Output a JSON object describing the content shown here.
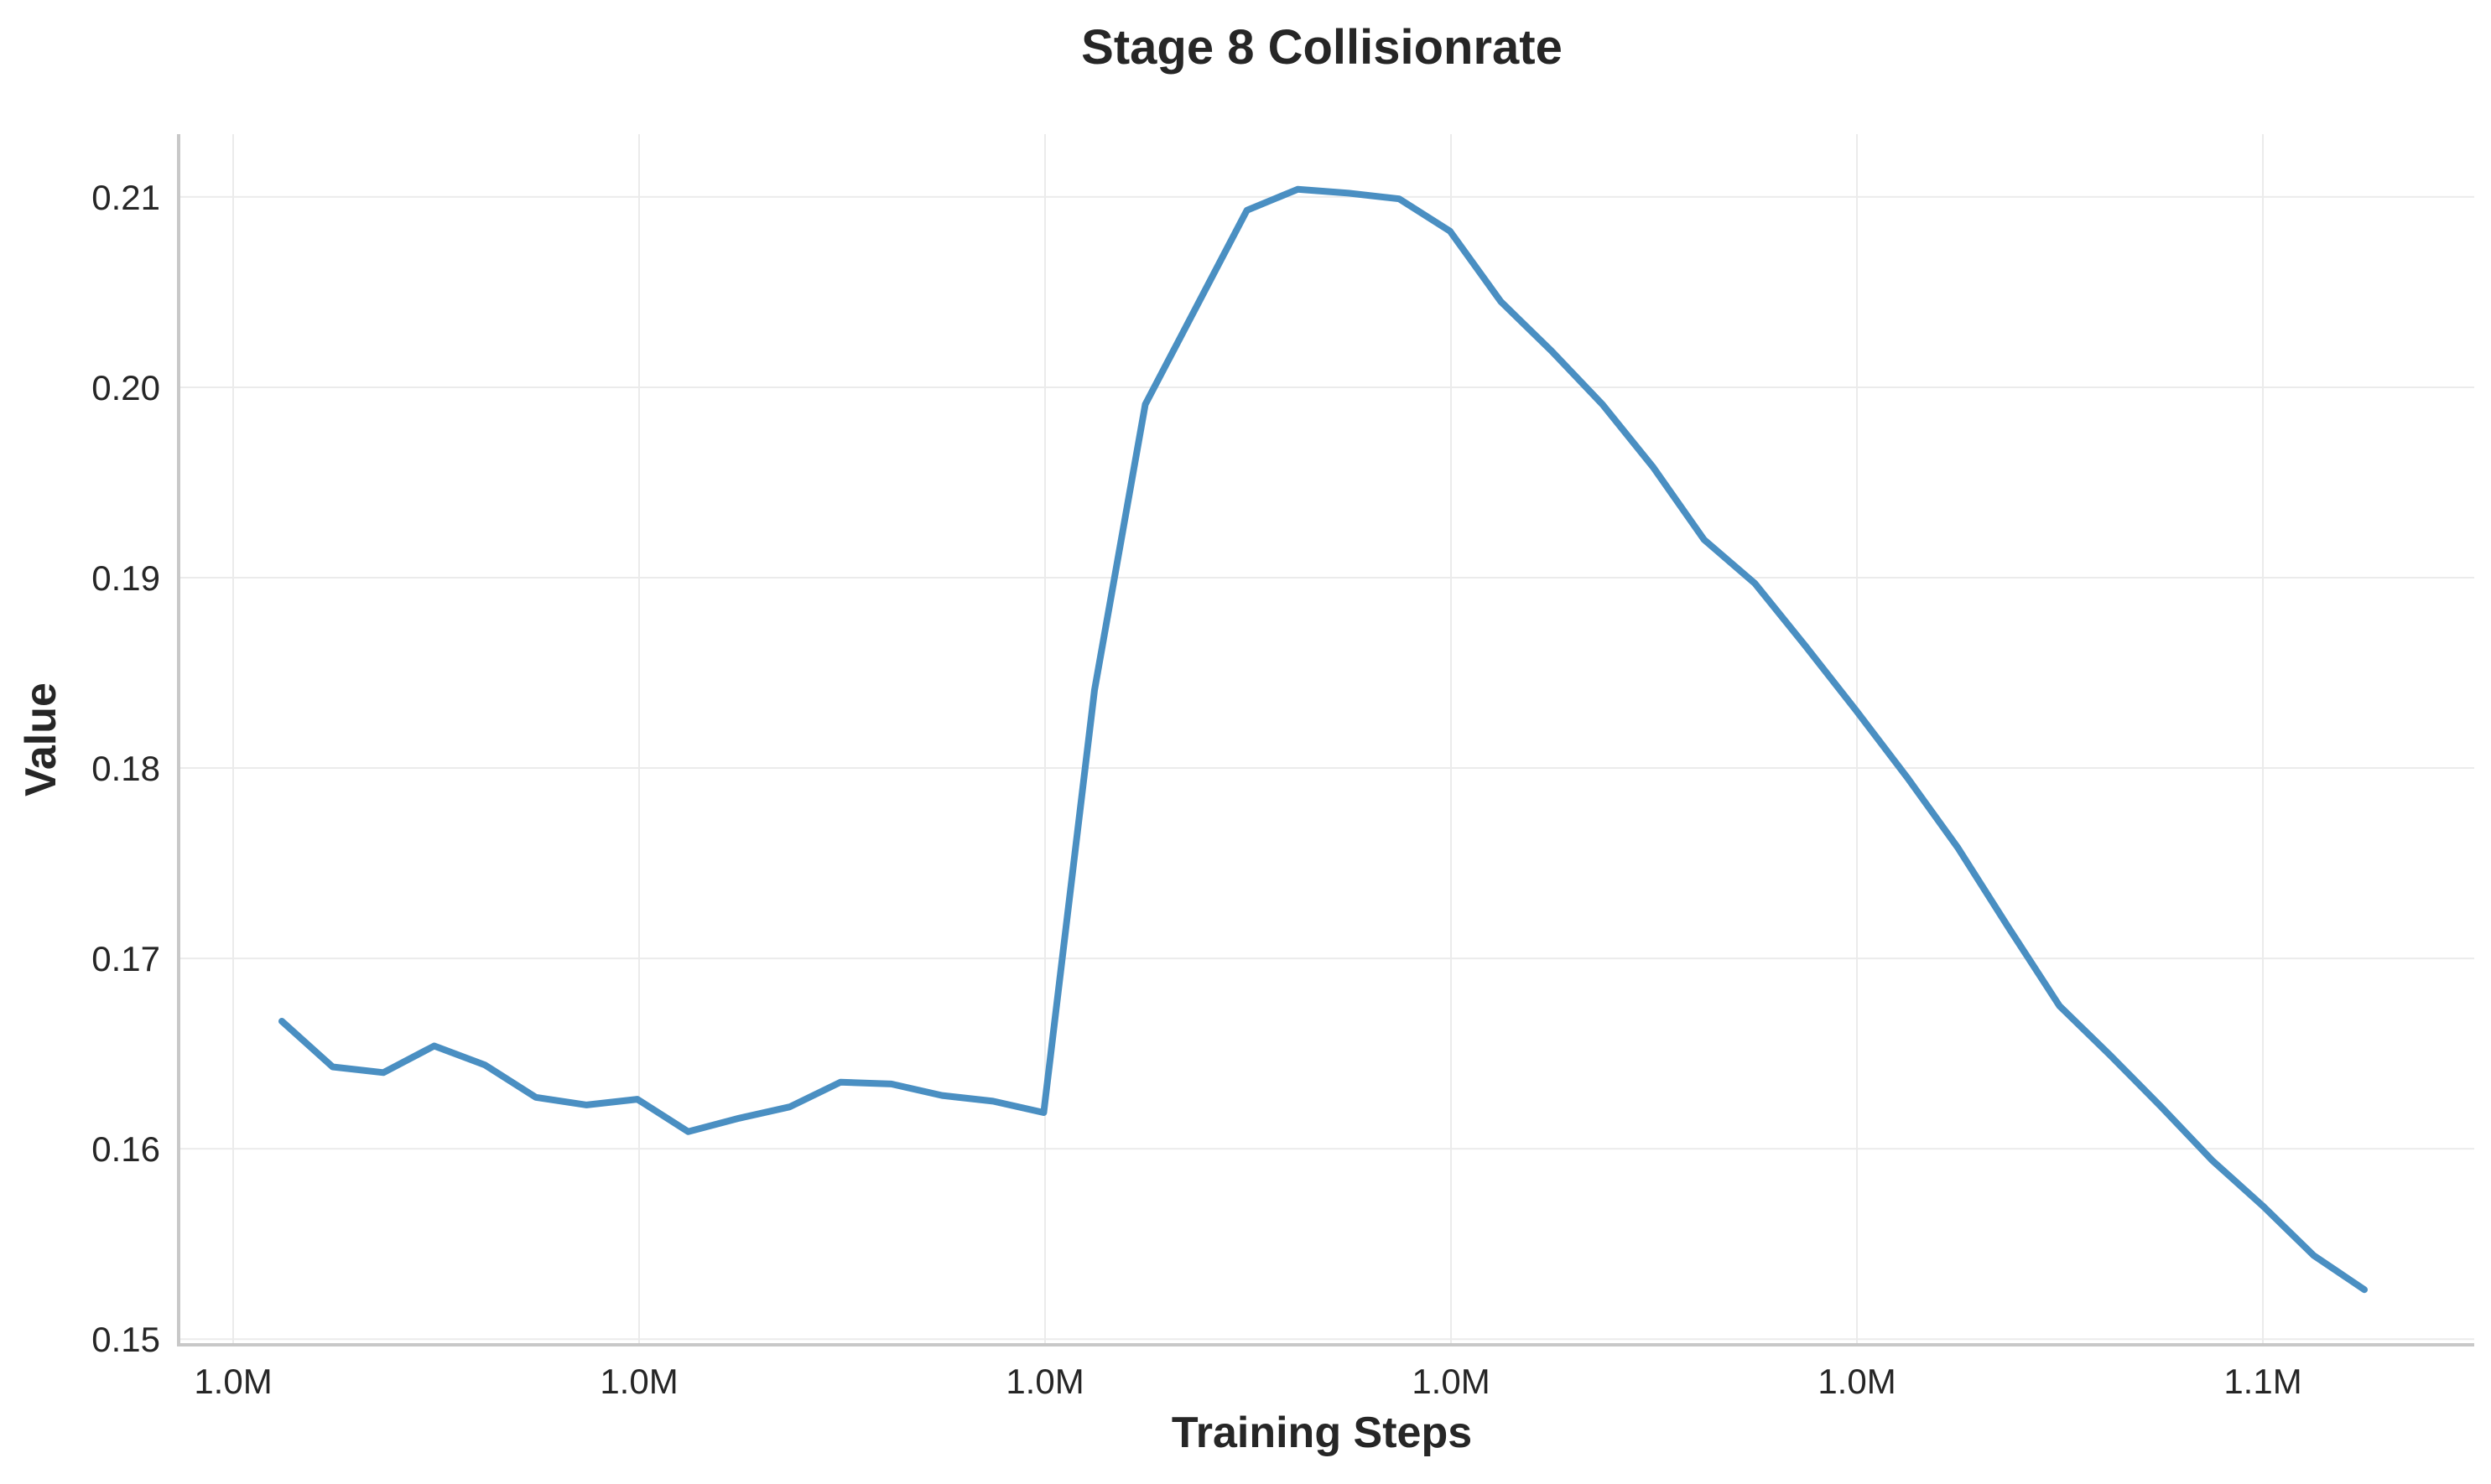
{
  "chart_data": {
    "type": "line",
    "title": "Stage 8 Collisionrate",
    "xlabel": "Training Steps",
    "ylabel": "Value",
    "x_tick_labels": [
      "1.0M",
      "1.0M",
      "1.0M",
      "1.0M",
      "1.0M",
      "1.1M"
    ],
    "y_tick_labels": [
      "0.15",
      "0.16",
      "0.17",
      "0.18",
      "0.19",
      "0.20",
      "0.21"
    ],
    "y_ticks": [
      0.15,
      0.16,
      0.17,
      0.18,
      0.19,
      0.2,
      0.21
    ],
    "ylim": [
      0.1497,
      0.2133
    ],
    "grid": true,
    "color": "#4a8fc2",
    "series": [
      {
        "values": [
          0.1667,
          0.1643,
          0.164,
          0.1654,
          0.1644,
          0.1627,
          0.1623,
          0.1626,
          0.1609,
          0.1616,
          0.1622,
          0.1635,
          0.1634,
          0.1628,
          0.1625,
          0.1619,
          0.1841,
          0.1991,
          0.2042,
          0.2093,
          0.2104,
          0.2102,
          0.2099,
          0.2082,
          0.2045,
          0.2019,
          0.1991,
          0.1958,
          0.192,
          0.1897,
          0.1864,
          0.183,
          0.1795,
          0.1758,
          0.1716,
          0.1675,
          0.1649,
          0.1622,
          0.1594,
          0.157,
          0.1544,
          0.1526
        ]
      }
    ]
  }
}
